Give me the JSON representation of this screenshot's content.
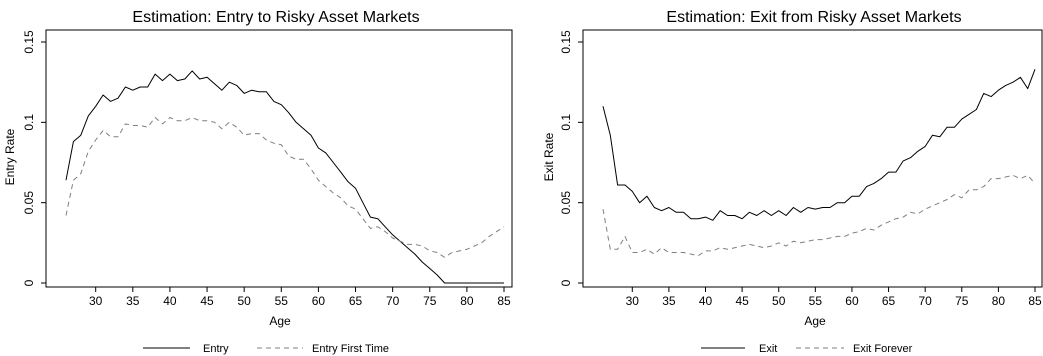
{
  "chart_data": [
    {
      "type": "line",
      "title": "Estimation: Entry to Risky Asset Markets",
      "xlabel": "Age",
      "ylabel": "Entry Rate",
      "xlim": [
        26,
        85
      ],
      "ylim": [
        0,
        0.15
      ],
      "xticks": [
        30,
        35,
        40,
        45,
        50,
        55,
        60,
        65,
        70,
        75,
        80,
        85
      ],
      "yticks": [
        0,
        0.05,
        0.1,
        0.15
      ],
      "ytick_labels": [
        "0",
        "0.05",
        "0.1",
        "0.15"
      ],
      "grid": false,
      "legend_position": "bottom",
      "x": [
        26,
        27,
        28,
        29,
        30,
        31,
        32,
        33,
        34,
        35,
        36,
        37,
        38,
        39,
        40,
        41,
        42,
        43,
        44,
        45,
        46,
        47,
        48,
        49,
        50,
        51,
        52,
        53,
        54,
        55,
        56,
        57,
        58,
        59,
        60,
        61,
        62,
        63,
        64,
        65,
        66,
        67,
        68,
        69,
        70,
        71,
        72,
        73,
        74,
        75,
        76,
        77,
        78,
        79,
        80,
        81,
        82,
        83,
        84,
        85
      ],
      "series": [
        {
          "name": "Entry",
          "style": "solid",
          "color": "#000000",
          "values": [
            0.064,
            0.088,
            0.092,
            0.104,
            0.11,
            0.117,
            0.113,
            0.115,
            0.122,
            0.12,
            0.122,
            0.122,
            0.13,
            0.126,
            0.13,
            0.126,
            0.127,
            0.132,
            0.127,
            0.128,
            0.124,
            0.12,
            0.125,
            0.123,
            0.118,
            0.12,
            0.119,
            0.119,
            0.113,
            0.111,
            0.106,
            0.1,
            0.096,
            0.092,
            0.084,
            0.081,
            0.075,
            0.069,
            0.063,
            0.059,
            0.05,
            0.041,
            0.04,
            0.035,
            0.03,
            0.026,
            0.022,
            0.018,
            0.013,
            0.009,
            0.005,
            0.0,
            0.0,
            0.0,
            0.0,
            0.0,
            0.0,
            0.0,
            0.0,
            0.0
          ]
        },
        {
          "name": "Entry First Time",
          "style": "dashed",
          "color": "#7f7f7f",
          "values": [
            0.042,
            0.064,
            0.068,
            0.082,
            0.089,
            0.095,
            0.091,
            0.091,
            0.099,
            0.098,
            0.098,
            0.097,
            0.103,
            0.099,
            0.103,
            0.101,
            0.101,
            0.103,
            0.101,
            0.101,
            0.1,
            0.096,
            0.1,
            0.097,
            0.092,
            0.093,
            0.093,
            0.089,
            0.087,
            0.086,
            0.079,
            0.077,
            0.077,
            0.071,
            0.064,
            0.06,
            0.056,
            0.053,
            0.048,
            0.046,
            0.04,
            0.034,
            0.035,
            0.032,
            0.028,
            0.026,
            0.024,
            0.024,
            0.023,
            0.02,
            0.019,
            0.016,
            0.019,
            0.02,
            0.021,
            0.023,
            0.025,
            0.029,
            0.032,
            0.035
          ]
        }
      ]
    },
    {
      "type": "line",
      "title": "Estimation: Exit from Risky Asset Markets",
      "xlabel": "Age",
      "ylabel": "Exit Rate",
      "xlim": [
        26,
        85
      ],
      "ylim": [
        0,
        0.15
      ],
      "xticks": [
        30,
        35,
        40,
        45,
        50,
        55,
        60,
        65,
        70,
        75,
        80,
        85
      ],
      "yticks": [
        0,
        0.05,
        0.1,
        0.15
      ],
      "ytick_labels": [
        "0",
        "0.05",
        "0.1",
        "0.15"
      ],
      "grid": false,
      "legend_position": "bottom",
      "x": [
        26,
        27,
        28,
        29,
        30,
        31,
        32,
        33,
        34,
        35,
        36,
        37,
        38,
        39,
        40,
        41,
        42,
        43,
        44,
        45,
        46,
        47,
        48,
        49,
        50,
        51,
        52,
        53,
        54,
        55,
        56,
        57,
        58,
        59,
        60,
        61,
        62,
        63,
        64,
        65,
        66,
        67,
        68,
        69,
        70,
        71,
        72,
        73,
        74,
        75,
        76,
        77,
        78,
        79,
        80,
        81,
        82,
        83,
        84,
        85
      ],
      "series": [
        {
          "name": "Exit",
          "style": "solid",
          "color": "#000000",
          "values": [
            0.11,
            0.092,
            0.061,
            0.061,
            0.057,
            0.05,
            0.054,
            0.047,
            0.045,
            0.047,
            0.044,
            0.044,
            0.04,
            0.04,
            0.041,
            0.039,
            0.045,
            0.042,
            0.042,
            0.04,
            0.044,
            0.042,
            0.045,
            0.042,
            0.045,
            0.042,
            0.047,
            0.044,
            0.047,
            0.046,
            0.047,
            0.047,
            0.05,
            0.05,
            0.054,
            0.054,
            0.06,
            0.062,
            0.065,
            0.069,
            0.069,
            0.076,
            0.078,
            0.082,
            0.085,
            0.092,
            0.091,
            0.097,
            0.097,
            0.102,
            0.105,
            0.108,
            0.118,
            0.116,
            0.12,
            0.123,
            0.125,
            0.128,
            0.121,
            0.133
          ]
        },
        {
          "name": "Exit Forever",
          "style": "dashed",
          "color": "#7f7f7f",
          "values": [
            0.046,
            0.021,
            0.021,
            0.029,
            0.019,
            0.019,
            0.021,
            0.018,
            0.022,
            0.019,
            0.019,
            0.019,
            0.018,
            0.017,
            0.02,
            0.02,
            0.022,
            0.021,
            0.022,
            0.023,
            0.024,
            0.023,
            0.022,
            0.023,
            0.025,
            0.023,
            0.026,
            0.025,
            0.026,
            0.027,
            0.027,
            0.028,
            0.029,
            0.029,
            0.031,
            0.032,
            0.034,
            0.033,
            0.036,
            0.038,
            0.04,
            0.041,
            0.044,
            0.043,
            0.046,
            0.048,
            0.05,
            0.052,
            0.055,
            0.053,
            0.058,
            0.058,
            0.06,
            0.065,
            0.065,
            0.066,
            0.067,
            0.065,
            0.067,
            0.062
          ]
        }
      ]
    }
  ]
}
